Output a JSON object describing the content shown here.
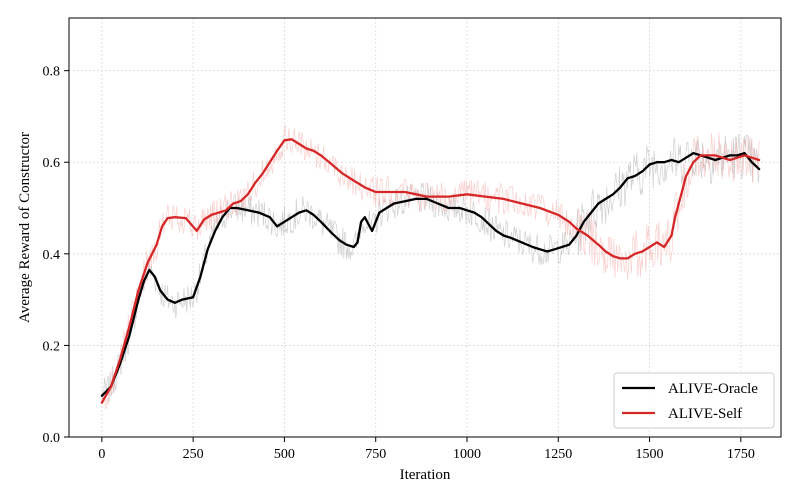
{
  "chart_data": {
    "type": "line",
    "title": "",
    "xlabel": "Iteration",
    "ylabel": "Average Reward of Constructor",
    "xlim": [
      -90,
      1860
    ],
    "ylim": [
      0.0,
      0.915
    ],
    "xticks": [
      0,
      250,
      500,
      750,
      1000,
      1250,
      1500,
      1750
    ],
    "xtick_labels": [
      "0",
      "250",
      "500",
      "750",
      "1000",
      "1250",
      "1500",
      "1750"
    ],
    "yticks": [
      0.0,
      0.2,
      0.4,
      0.6,
      0.8
    ],
    "ytick_labels": [
      "0.0",
      "0.2",
      "0.4",
      "0.6",
      "0.8"
    ],
    "grid": true,
    "legend_position": "bottom-right",
    "series": [
      {
        "name": "ALIVE-Oracle",
        "color": "#000000",
        "raw_color": "#b0b0b0",
        "x": [
          0,
          25,
          50,
          75,
          100,
          115,
          130,
          145,
          160,
          180,
          200,
          220,
          250,
          270,
          290,
          310,
          330,
          350,
          370,
          400,
          430,
          460,
          480,
          500,
          520,
          540,
          560,
          580,
          600,
          630,
          650,
          670,
          690,
          700,
          710,
          720,
          730,
          740,
          760,
          780,
          800,
          830,
          860,
          890,
          920,
          950,
          980,
          1000,
          1020,
          1040,
          1060,
          1080,
          1100,
          1120,
          1150,
          1180,
          1200,
          1220,
          1240,
          1260,
          1280,
          1300,
          1320,
          1340,
          1360,
          1380,
          1400,
          1420,
          1440,
          1460,
          1480,
          1500,
          1520,
          1540,
          1560,
          1580,
          1600,
          1620,
          1640,
          1660,
          1680,
          1700,
          1720,
          1740,
          1760,
          1780,
          1800
        ],
        "values": [
          0.09,
          0.11,
          0.16,
          0.22,
          0.3,
          0.34,
          0.365,
          0.35,
          0.32,
          0.3,
          0.293,
          0.3,
          0.305,
          0.35,
          0.41,
          0.45,
          0.48,
          0.5,
          0.5,
          0.495,
          0.49,
          0.48,
          0.46,
          0.47,
          0.48,
          0.49,
          0.495,
          0.485,
          0.47,
          0.445,
          0.43,
          0.42,
          0.415,
          0.425,
          0.47,
          0.48,
          0.465,
          0.45,
          0.49,
          0.5,
          0.51,
          0.515,
          0.52,
          0.52,
          0.51,
          0.5,
          0.5,
          0.495,
          0.49,
          0.48,
          0.465,
          0.45,
          0.44,
          0.435,
          0.425,
          0.415,
          0.41,
          0.405,
          0.41,
          0.415,
          0.42,
          0.44,
          0.47,
          0.49,
          0.51,
          0.52,
          0.53,
          0.545,
          0.565,
          0.57,
          0.58,
          0.595,
          0.6,
          0.6,
          0.605,
          0.6,
          0.61,
          0.62,
          0.615,
          0.61,
          0.605,
          0.61,
          0.615,
          0.615,
          0.62,
          0.6,
          0.585
        ]
      },
      {
        "name": "ALIVE-Self",
        "color": "#d62728",
        "raw_color": "#f4a9a5",
        "x": [
          0,
          25,
          50,
          75,
          100,
          125,
          150,
          165,
          180,
          200,
          230,
          260,
          280,
          300,
          320,
          340,
          360,
          380,
          400,
          420,
          440,
          460,
          480,
          500,
          520,
          540,
          560,
          580,
          600,
          630,
          660,
          690,
          720,
          750,
          780,
          800,
          830,
          860,
          890,
          920,
          950,
          1000,
          1050,
          1100,
          1150,
          1200,
          1250,
          1280,
          1300,
          1330,
          1360,
          1380,
          1400,
          1420,
          1440,
          1460,
          1480,
          1500,
          1520,
          1540,
          1560,
          1570,
          1580,
          1600,
          1620,
          1640,
          1660,
          1680,
          1700,
          1720,
          1740,
          1760,
          1780,
          1800
        ],
        "values": [
          0.075,
          0.11,
          0.17,
          0.24,
          0.32,
          0.38,
          0.42,
          0.46,
          0.478,
          0.48,
          0.478,
          0.45,
          0.475,
          0.485,
          0.49,
          0.495,
          0.51,
          0.515,
          0.53,
          0.555,
          0.575,
          0.6,
          0.625,
          0.648,
          0.65,
          0.64,
          0.63,
          0.625,
          0.615,
          0.595,
          0.575,
          0.56,
          0.545,
          0.535,
          0.535,
          0.535,
          0.535,
          0.53,
          0.525,
          0.525,
          0.525,
          0.53,
          0.525,
          0.52,
          0.51,
          0.5,
          0.485,
          0.47,
          0.455,
          0.44,
          0.42,
          0.405,
          0.395,
          0.39,
          0.39,
          0.4,
          0.405,
          0.415,
          0.425,
          0.415,
          0.44,
          0.48,
          0.51,
          0.57,
          0.6,
          0.615,
          0.615,
          0.615,
          0.61,
          0.605,
          0.61,
          0.615,
          0.61,
          0.605
        ]
      }
    ]
  }
}
